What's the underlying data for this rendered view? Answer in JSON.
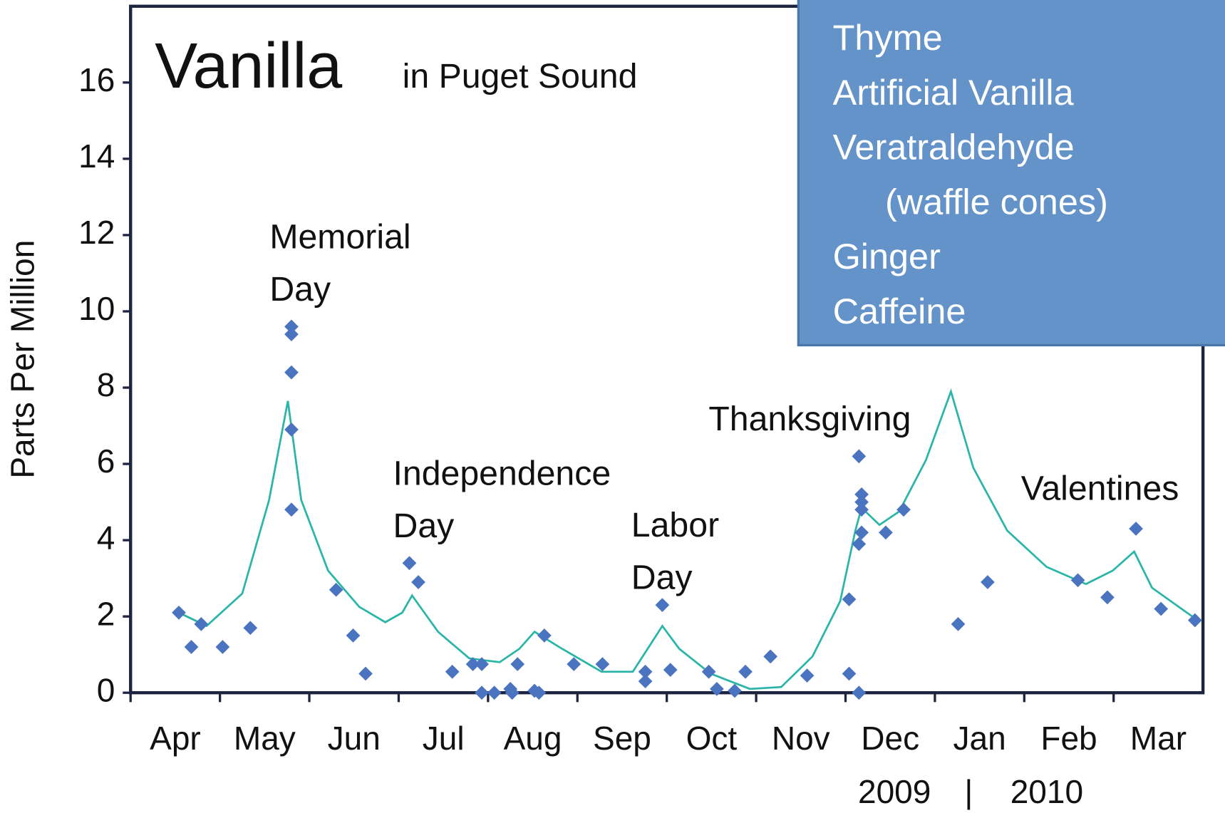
{
  "chart_data": {
    "type": "scatter",
    "title": "Vanilla",
    "subtitle": "in Puget Sound",
    "ylabel": "Parts Per Million",
    "ylim": [
      0,
      18
    ],
    "yticks": [
      0,
      2,
      4,
      6,
      8,
      10,
      12,
      14,
      16
    ],
    "xlim": [
      0,
      12
    ],
    "xticks": [
      {
        "value": 0,
        "label": "Apr"
      },
      {
        "value": 1,
        "label": "May"
      },
      {
        "value": 2,
        "label": "Jun"
      },
      {
        "value": 3,
        "label": "Jul"
      },
      {
        "value": 4,
        "label": "Aug"
      },
      {
        "value": 5,
        "label": "Sep"
      },
      {
        "value": 6,
        "label": "Oct"
      },
      {
        "value": 7,
        "label": "Nov"
      },
      {
        "value": 8,
        "label": "Dec"
      },
      {
        "value": 9,
        "label": "Jan"
      },
      {
        "value": 10,
        "label": "Feb"
      },
      {
        "value": 11,
        "label": "Mar"
      }
    ],
    "year_labels": [
      "2009",
      "2010"
    ],
    "grid": false,
    "points": {
      "color": "#4a73c0",
      "x": [
        0.54,
        0.68,
        0.79,
        1.03,
        1.34,
        1.8,
        1.8,
        1.8,
        1.8,
        1.8,
        2.3,
        2.49,
        2.63,
        3.12,
        3.22,
        3.6,
        3.83,
        3.93,
        3.93,
        4.07,
        4.25,
        4.27,
        4.33,
        4.52,
        4.57,
        4.63,
        4.96,
        5.28,
        5.76,
        5.76,
        5.95,
        6.04,
        6.47,
        6.56,
        6.76,
        6.88,
        7.16,
        7.57,
        8.04,
        8.04,
        8.15,
        8.18,
        8.18,
        8.18,
        8.18,
        8.15,
        8.15,
        8.45,
        8.65,
        9.26,
        9.59,
        10.6,
        10.93,
        11.25,
        11.53,
        11.91
      ],
      "y": [
        2.1,
        1.2,
        1.8,
        1.2,
        1.7,
        9.6,
        9.4,
        8.4,
        6.9,
        4.8,
        2.7,
        1.5,
        0.5,
        3.4,
        2.9,
        0.55,
        0.75,
        0.75,
        0,
        0,
        0.1,
        0,
        0.75,
        0.05,
        0,
        1.5,
        0.75,
        0.75,
        0.55,
        0.3,
        2.3,
        0.6,
        0.55,
        0.1,
        0.05,
        0.55,
        0.95,
        0.45,
        2.45,
        0.5,
        6.2,
        5.2,
        5.0,
        4.8,
        4.2,
        3.9,
        0,
        4.2,
        4.8,
        1.8,
        2.9,
        2.95,
        2.5,
        4.3,
        2.2,
        1.9
      ]
    },
    "trend": {
      "color": "#2bb5a8",
      "x": [
        0.54,
        0.85,
        1.25,
        1.55,
        1.76,
        1.91,
        2.21,
        2.56,
        2.85,
        3.04,
        3.15,
        3.44,
        3.79,
        4.13,
        4.35,
        4.52,
        4.83,
        5.27,
        5.62,
        5.84,
        5.95,
        6.14,
        6.49,
        6.93,
        7.28,
        7.63,
        7.94,
        8.11,
        8.18,
        8.38,
        8.6,
        8.9,
        9.18,
        9.43,
        9.81,
        10.25,
        10.69,
        10.99,
        11.23,
        11.43,
        11.91
      ],
      "y": [
        2.1,
        1.75,
        2.6,
        5.05,
        7.65,
        5.05,
        3.2,
        2.25,
        1.85,
        2.1,
        2.55,
        1.6,
        0.9,
        0.8,
        1.15,
        1.6,
        1.15,
        0.55,
        0.55,
        1.35,
        1.75,
        1.15,
        0.5,
        0.1,
        0.15,
        0.95,
        2.4,
        4.25,
        4.85,
        4.4,
        4.75,
        6.1,
        7.9,
        5.9,
        4.25,
        3.3,
        2.85,
        3.2,
        3.7,
        2.75,
        1.95
      ]
    },
    "annotations": [
      {
        "lines": [
          "Memorial",
          "Day"
        ]
      },
      {
        "lines": [
          "Independence",
          "Day"
        ]
      },
      {
        "lines": [
          "Labor",
          "Day"
        ]
      },
      {
        "lines": [
          "Thanksgiving"
        ]
      },
      {
        "lines": [
          "Valentines"
        ]
      }
    ],
    "legend_box": [
      "Thyme",
      "Artificial Vanilla",
      "Veratraldehyde",
      "(waffle cones)",
      "Ginger",
      "Caffeine"
    ]
  }
}
